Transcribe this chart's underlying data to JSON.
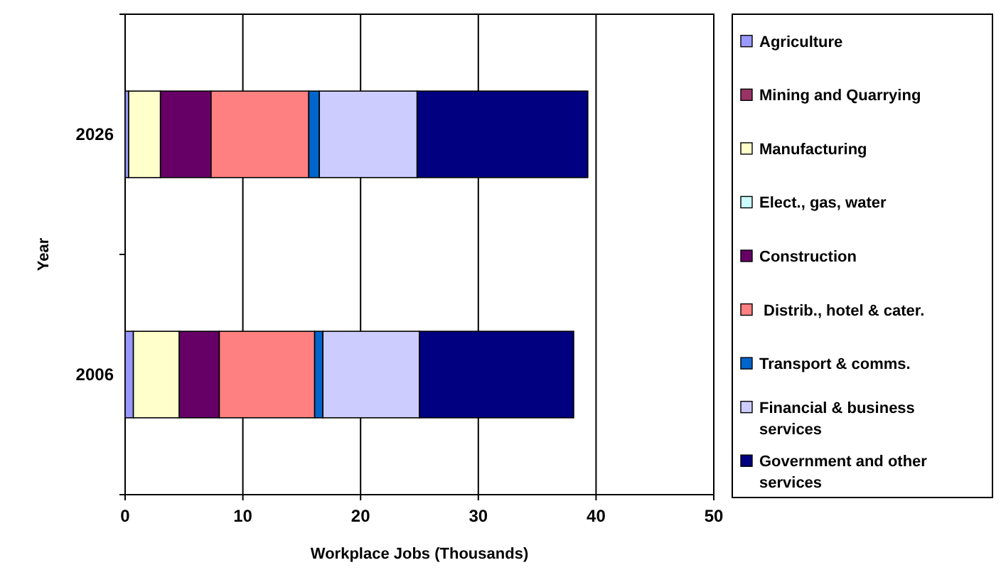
{
  "chart_data": {
    "type": "bar",
    "orientation": "horizontal",
    "stacked": true,
    "xlabel": "Workplace Jobs (Thousands)",
    "ylabel": "Year",
    "categories": [
      "2026",
      "2006"
    ],
    "xlim": [
      0,
      50
    ],
    "xticks": [
      0,
      10,
      20,
      30,
      40,
      50
    ],
    "grid": "x",
    "legend": "right",
    "series": [
      {
        "name": "Agriculture",
        "color": "#9999ff",
        "values": [
          0.3,
          0.7
        ]
      },
      {
        "name": "Mining and Quarrying",
        "color": "#993366",
        "values": [
          0,
          0
        ]
      },
      {
        "name": "Manufacturing",
        "color": "#ffffcc",
        "values": [
          2.7,
          3.9
        ]
      },
      {
        "name": "Elect., gas, water",
        "color": "#ccffff",
        "values": [
          0,
          0
        ]
      },
      {
        "name": "Construction",
        "color": "#660066",
        "values": [
          4.3,
          3.4
        ]
      },
      {
        "name": " Distrib., hotel & cater.",
        "color": "#ff8080",
        "values": [
          8.3,
          8.1
        ]
      },
      {
        "name": "Transport & comms.",
        "color": "#0066cc",
        "values": [
          0.9,
          0.7
        ]
      },
      {
        "name": "Financial & business services",
        "color": "#ccccff",
        "values": [
          8.3,
          8.2
        ]
      },
      {
        "name": "Government and other services",
        "color": "#000080",
        "values": [
          14.5,
          13.1
        ]
      }
    ]
  }
}
